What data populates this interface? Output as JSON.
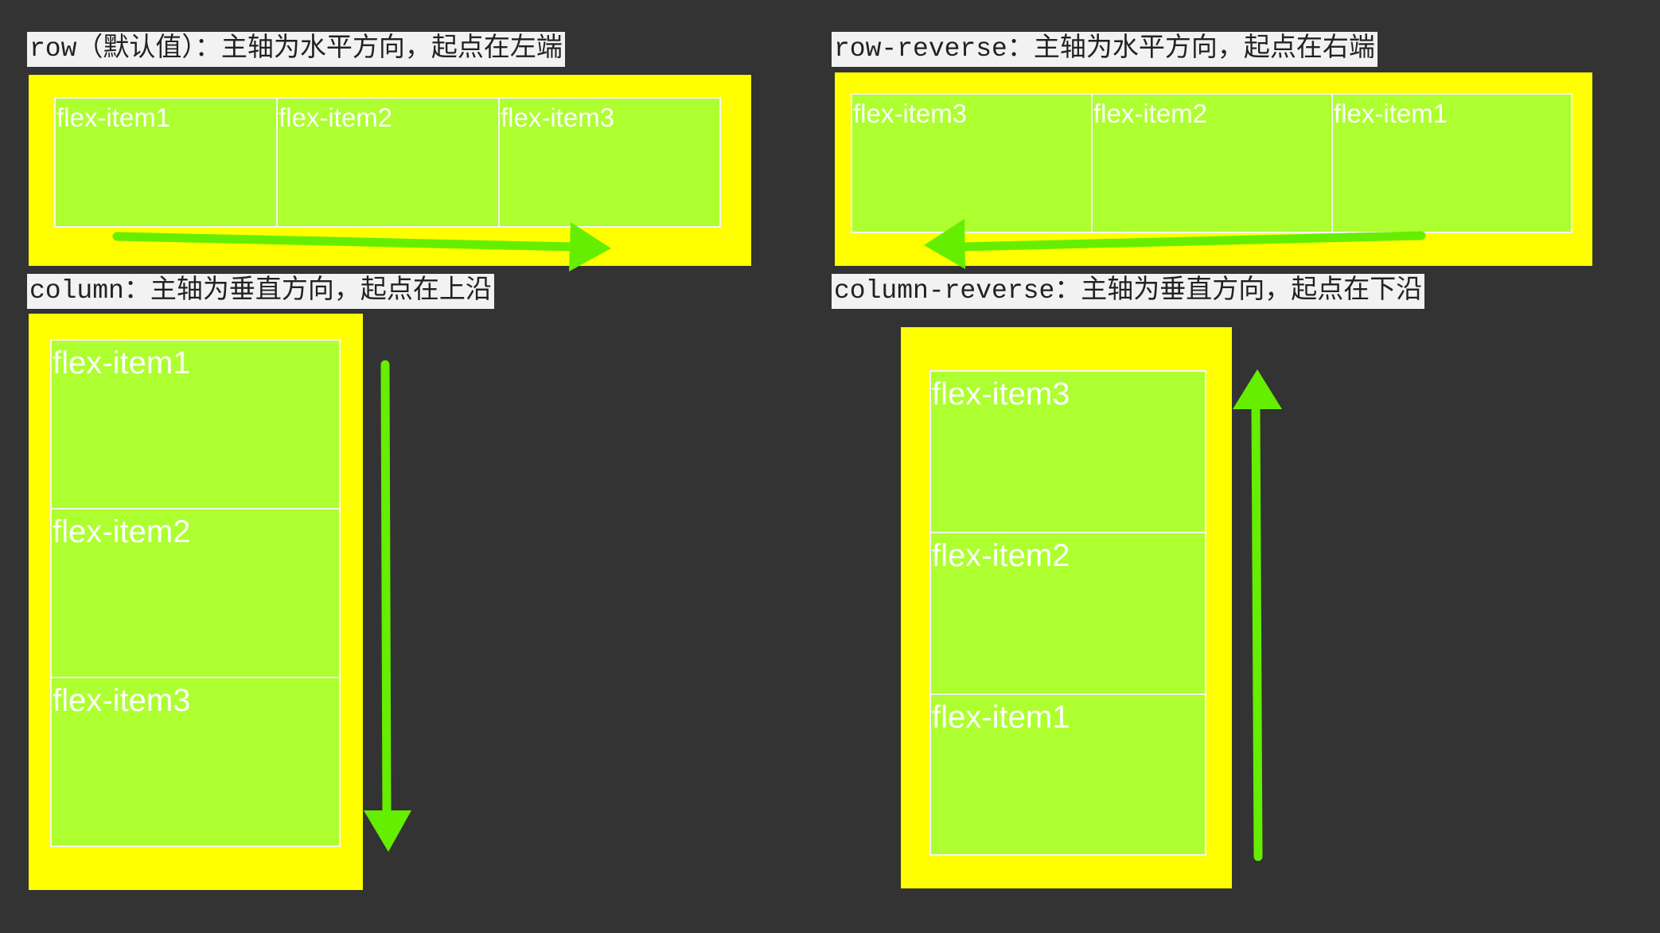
{
  "row": {
    "caption": "row（默认值）：主轴为水平方向，起点在左端",
    "items": [
      "flex-item1",
      "flex-item2",
      "flex-item3"
    ]
  },
  "row_reverse": {
    "caption": "row-reverse：主轴为水平方向，起点在右端",
    "items": [
      "flex-item3",
      "flex-item2",
      "flex-item1"
    ]
  },
  "column": {
    "caption": "column：主轴为垂直方向，起点在上沿",
    "items": [
      "flex-item1",
      "flex-item2",
      "flex-item3"
    ]
  },
  "column_reverse": {
    "caption": "column-reverse：主轴为垂直方向，起点在下沿",
    "items": [
      "flex-item3",
      "flex-item2",
      "flex-item1"
    ]
  },
  "colors": {
    "background": "#333333",
    "container": "#ffff00",
    "item": "#adff2f",
    "item_border": "#f4f4f4",
    "arrow": "#66ee00",
    "caption_bg": "#f2f2f2"
  }
}
